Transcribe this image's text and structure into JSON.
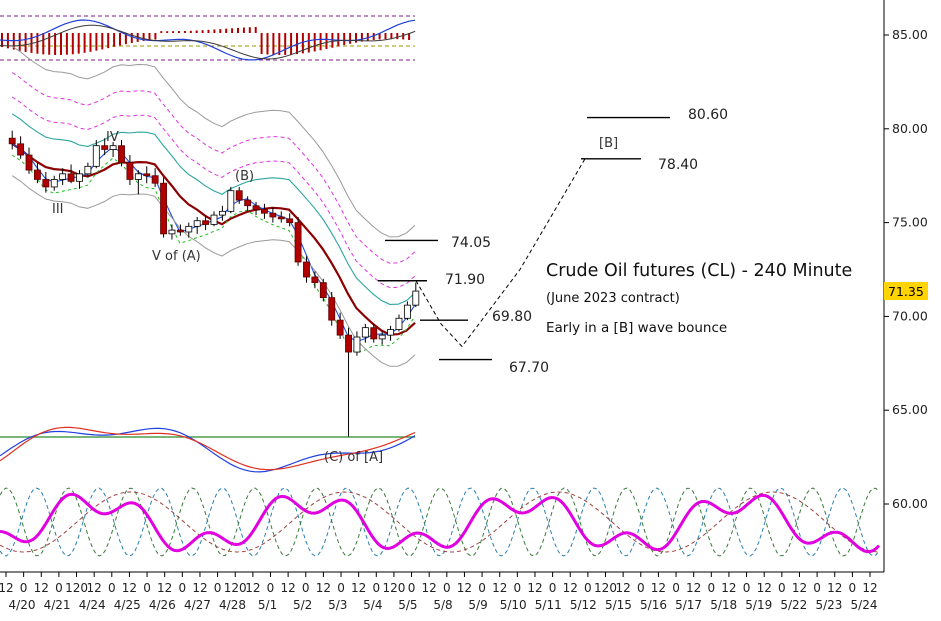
{
  "chart_data": {
    "type": "candlestick",
    "title": "Crude Oil futures (CL) - 240 Minute",
    "subtitle": "(June 2023 contract)",
    "note": "Early in a [B] wave bounce",
    "current_price_label": "71.35",
    "colors": {
      "accent_price_box": "#ffd400",
      "ma_dark_red": "#8b0000",
      "ma_teal": "#2aa6a0",
      "ma_blue": "#1f4fd8",
      "ma_grey": "#9a9a9a",
      "ma_magenta_dashed": "#e033e0",
      "ma_green_dashed": "#22bb22",
      "cycle_magenta": "#e000e0",
      "osc_blue": "#2040e0",
      "osc_red": "#e03020",
      "support_green": "#2a8a2a"
    },
    "y_axis": {
      "min": 57.0,
      "max": 86.0,
      "ticks": [
        "85.00",
        "80.00",
        "75.00",
        "70.00",
        "65.00",
        "60.00"
      ]
    },
    "x_axis": {
      "hour_labels": [
        "12",
        "0",
        "12",
        "0",
        "120",
        "12",
        "0",
        "12",
        "0",
        "12",
        "0",
        "12",
        "0",
        "120",
        "12",
        "0",
        "12",
        "0",
        "12",
        "0",
        "12",
        "0",
        "120",
        "0",
        "12",
        "0",
        "12",
        "0",
        "12",
        "0",
        "12",
        "0",
        "12",
        "0",
        "120",
        "12",
        "0",
        "12",
        "0",
        "12",
        "0",
        "12",
        "0",
        "12",
        "0",
        "12",
        "0",
        "12",
        "0",
        "12"
      ],
      "date_labels": [
        "4/20",
        "4/21",
        "4/24",
        "4/25",
        "4/26",
        "4/27",
        "4/28",
        "5/1",
        "5/2",
        "5/3",
        "5/4",
        "5/5",
        "5/8",
        "5/9",
        "5/10",
        "5/11",
        "5/12",
        "5/15",
        "5/16",
        "5/17",
        "5/18",
        "5/19",
        "5/22",
        "5/23",
        "5/24"
      ]
    },
    "wave_labels": [
      "IV",
      "III",
      "V of (A)",
      "(B)",
      "(C) of [A]",
      "[B]"
    ],
    "level_labels": [
      "80.60",
      "78.40",
      "74.05",
      "71.90",
      "69.80",
      "67.70"
    ],
    "candles": [
      [
        79.5,
        79.9,
        78.9,
        79.2
      ],
      [
        79.2,
        79.6,
        78.4,
        78.6
      ],
      [
        78.6,
        79.0,
        77.6,
        77.8
      ],
      [
        77.8,
        78.2,
        77.1,
        77.3
      ],
      [
        77.3,
        77.7,
        76.6,
        76.9
      ],
      [
        76.9,
        77.5,
        76.7,
        77.3
      ],
      [
        77.3,
        77.9,
        77.0,
        77.6
      ],
      [
        77.6,
        78.1,
        77.1,
        77.2
      ],
      [
        77.2,
        77.8,
        76.8,
        77.6
      ],
      [
        77.6,
        78.2,
        77.4,
        78.0
      ],
      [
        78.0,
        79.4,
        77.9,
        79.1
      ],
      [
        79.1,
        79.5,
        78.6,
        78.9
      ],
      [
        78.9,
        79.3,
        78.5,
        79.1
      ],
      [
        79.1,
        79.4,
        78.0,
        78.2
      ],
      [
        78.2,
        78.6,
        77.0,
        77.3
      ],
      [
        77.3,
        77.8,
        76.5,
        77.6
      ],
      [
        77.6,
        78.0,
        77.1,
        77.5
      ],
      [
        77.5,
        77.9,
        76.9,
        77.1
      ],
      [
        77.1,
        77.4,
        74.2,
        74.4
      ],
      [
        74.4,
        74.9,
        74.1,
        74.6
      ],
      [
        74.6,
        74.9,
        74.3,
        74.5
      ],
      [
        74.5,
        75.0,
        74.2,
        74.8
      ],
      [
        74.8,
        75.3,
        74.4,
        75.1
      ],
      [
        75.1,
        75.4,
        74.6,
        74.9
      ],
      [
        74.9,
        75.6,
        74.8,
        75.4
      ],
      [
        75.4,
        75.9,
        75.1,
        75.6
      ],
      [
        75.6,
        76.9,
        75.5,
        76.7
      ],
      [
        76.7,
        76.9,
        76.0,
        76.2
      ],
      [
        76.2,
        76.4,
        75.6,
        75.9
      ],
      [
        75.9,
        76.1,
        75.4,
        75.7
      ],
      [
        75.7,
        76.0,
        75.2,
        75.5
      ],
      [
        75.5,
        75.8,
        75.0,
        75.3
      ],
      [
        75.3,
        75.6,
        75.0,
        75.2
      ],
      [
        75.2,
        75.5,
        74.8,
        75.0
      ],
      [
        75.0,
        75.3,
        72.7,
        72.9
      ],
      [
        72.9,
        73.2,
        71.8,
        72.1
      ],
      [
        72.1,
        72.4,
        71.5,
        71.8
      ],
      [
        71.8,
        72.0,
        70.8,
        71.0
      ],
      [
        71.0,
        71.3,
        69.5,
        69.8
      ],
      [
        69.8,
        70.2,
        68.8,
        69.0
      ],
      [
        69.0,
        69.4,
        63.6,
        68.1
      ],
      [
        68.1,
        69.2,
        67.9,
        68.9
      ],
      [
        68.9,
        69.6,
        68.6,
        69.4
      ],
      [
        69.4,
        69.6,
        68.6,
        68.8
      ],
      [
        68.8,
        69.2,
        68.5,
        69.0
      ],
      [
        69.0,
        69.5,
        68.7,
        69.3
      ],
      [
        69.3,
        70.1,
        69.2,
        69.9
      ],
      [
        69.9,
        70.8,
        69.8,
        70.6
      ],
      [
        70.6,
        71.8,
        70.5,
        71.35
      ]
    ]
  }
}
